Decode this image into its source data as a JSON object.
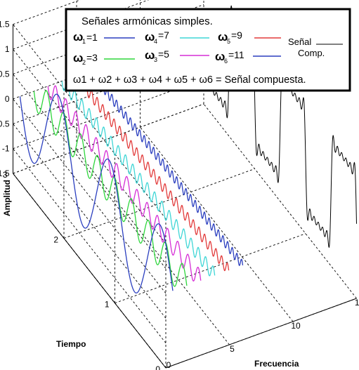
{
  "chart_data": {
    "type": "line",
    "projection": "3d-waterfall",
    "legend": {
      "title": "Señales armónicas simples.",
      "placement": "top",
      "entries": [
        {
          "sym": "ω",
          "sub": "1",
          "text": "=1",
          "color": "#2b3fbf"
        },
        {
          "sym": "ω",
          "sub": "4",
          "text": "=7",
          "color": "#3fd6d6"
        },
        {
          "sym": "ω",
          "sub": "5",
          "text": "=9",
          "color": "#e23b3b"
        },
        {
          "sym": "ω",
          "sub": "2",
          "text": "=3",
          "color": "#2ed63c"
        },
        {
          "sym": "ω",
          "sub": "3",
          "text": "=5",
          "color": "#d62ed6"
        },
        {
          "sym": "ω",
          "sub": "6",
          "text": "=11",
          "color": "#2b3fbf"
        }
      ],
      "composite_label_1": "Señal",
      "composite_label_2": "Comp.",
      "composite_color": "#000000",
      "formula": "ω1 + ω2 + ω3 + ω4 + ω5 + ω6 = Señal compuesta."
    },
    "zlabel": "Amplitud",
    "ylabel": "Tiempo",
    "xlabel": "Frecuencia",
    "zlim": [
      -1.5,
      1.5
    ],
    "zticks": [
      "1.5",
      "1",
      "0.5",
      "0",
      "-0.5",
      "-1",
      "-1.5"
    ],
    "yticks": [
      "3",
      "2",
      "1",
      "0"
    ],
    "xticks": [
      "0",
      "5",
      "10",
      "15"
    ],
    "grid": true,
    "series": [
      {
        "omega": 1,
        "amplitude": 1.0,
        "color": "#2b3fbf"
      },
      {
        "omega": 3,
        "amplitude": 0.333,
        "color": "#2ed63c"
      },
      {
        "omega": 5,
        "amplitude": 0.2,
        "color": "#d62ed6"
      },
      {
        "omega": 7,
        "amplitude": 0.143,
        "color": "#3fd6d6"
      },
      {
        "omega": 9,
        "amplitude": 0.111,
        "color": "#e23b3b"
      },
      {
        "omega": 11,
        "amplitude": 0.091,
        "color": "#2b3fbf"
      },
      {
        "omega": 15,
        "amplitude": 1.0,
        "color": "#000000",
        "composite": true
      }
    ]
  }
}
